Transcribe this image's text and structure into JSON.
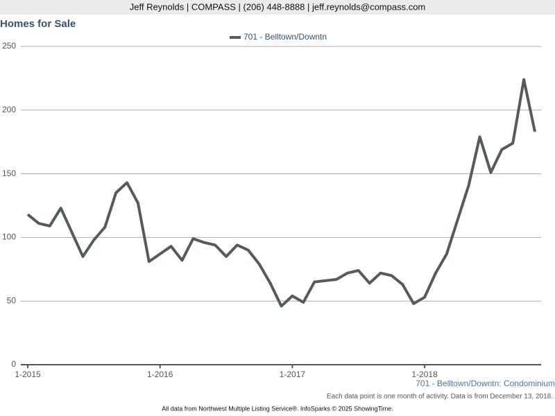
{
  "header": "Jeff Reynolds | COMPASS | (206) 448-8888 | jeff.reynolds@compass.com",
  "chart_data": {
    "type": "line",
    "title": "Homes for Sale",
    "categories": [
      "1-2015",
      null,
      null,
      null,
      null,
      null,
      null,
      null,
      null,
      null,
      null,
      null,
      "1-2016",
      null,
      null,
      null,
      null,
      null,
      null,
      null,
      null,
      null,
      null,
      null,
      "1-2017",
      null,
      null,
      null,
      null,
      null,
      null,
      null,
      null,
      null,
      null,
      null,
      "1-2018",
      null,
      null,
      null,
      null,
      null,
      null,
      null,
      null,
      null,
      null
    ],
    "series": [
      {
        "name": "701 - Belltown/Downtn",
        "color": "#545b5a",
        "values": [
          118,
          111,
          109,
          123,
          104,
          85,
          98,
          108,
          135,
          143,
          127,
          81,
          87,
          93,
          82,
          99,
          96,
          94,
          85,
          94,
          90,
          79,
          64,
          46,
          54,
          49,
          65,
          66,
          67,
          72,
          74,
          64,
          72,
          70,
          63,
          48,
          53,
          72,
          87,
          114,
          141,
          179,
          151,
          169,
          174,
          224,
          183
        ]
      }
    ],
    "ylim": [
      0,
      250
    ],
    "yticks": [
      0,
      50,
      100,
      150,
      200,
      250
    ],
    "grid": true,
    "legend": "top",
    "x_caption": "701 - Belltown/Downtn: Condominium",
    "note": "Each data point is one month of activity. Data is from December 13, 2018."
  },
  "footer": "All data from Northwest Multiple Listing Service®. InfoSparks © 2025 ShowingTime."
}
